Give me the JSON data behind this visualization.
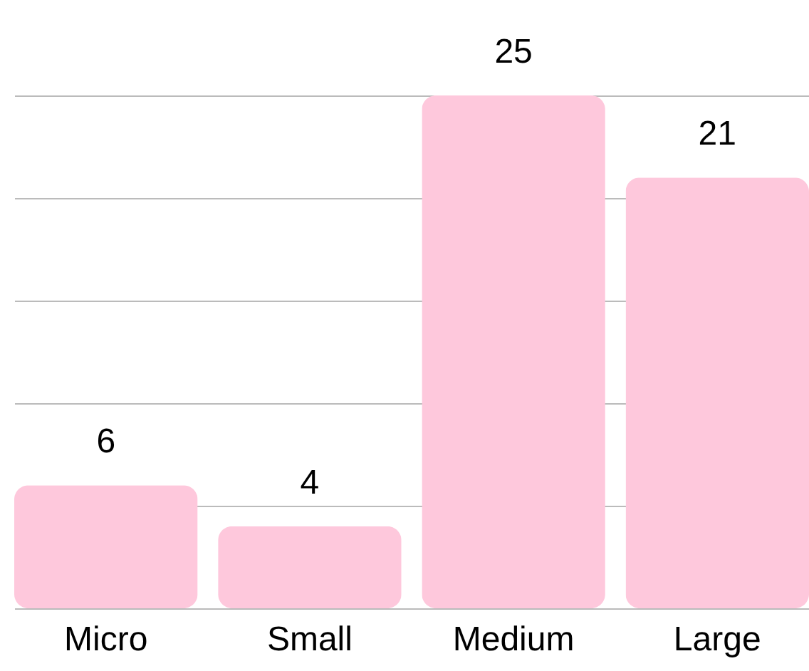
{
  "chart_data": {
    "type": "bar",
    "categories": [
      "Micro",
      "Small",
      "Medium",
      "Large"
    ],
    "values": [
      6,
      4,
      25,
      21
    ],
    "color": "#fec8dc",
    "ylim": [
      0,
      25
    ],
    "yticks": [
      0,
      5,
      10,
      15,
      20,
      25
    ],
    "grid": "y",
    "tick_labels": "x",
    "data_labels": true
  }
}
